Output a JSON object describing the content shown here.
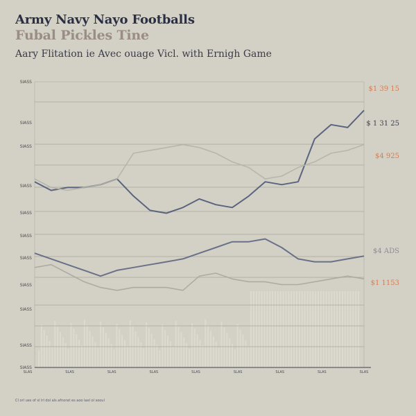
{
  "header": {
    "title_line1": "Army Navy Nayo Footballs",
    "title_line2": "Fubal Pickles Tine",
    "subtitle": "Aary Flitation  ie Avec ouage Vicl.   with Ernigh Game"
  },
  "footnote": "Cl  orl ues of sl lrl dol als afnorat es aoo lael ol sooul",
  "chart_data": {
    "type": "line",
    "title": "Army Navy Nayo Footballs",
    "subtitle": "Aary Flitation  ie Avec ouage Vicl.   with Ernigh Game",
    "xlabel": "",
    "ylabel": "",
    "x": [
      0,
      1,
      2,
      3,
      4,
      5,
      6,
      7,
      8,
      9,
      10,
      11,
      12,
      13,
      14,
      15,
      16,
      17,
      18,
      19,
      20
    ],
    "ylim": [
      0,
      100
    ],
    "grid": true,
    "x_tick_labels": [
      "SLAS",
      "SLAS",
      "SLAS",
      "SLAS",
      "SLAS",
      "SLAS",
      "SLAS",
      "SLAS",
      "SLAS"
    ],
    "y_tick_labels": [
      "SIASS",
      "SIASS",
      "SIASS",
      "SIASS",
      "SIASS",
      "SIASS",
      "SIASS",
      "SIASS",
      "SIASS",
      "SIASS",
      "SIASS"
    ],
    "series": [
      {
        "values": [
          65,
          62,
          63,
          63,
          64,
          66,
          60,
          55,
          54,
          56,
          59,
          57,
          56,
          60,
          65,
          64,
          65,
          80,
          85,
          84,
          90
        ],
        "color": "#4e5877"
      },
      {
        "values": [
          66,
          63,
          62,
          63,
          64,
          66,
          75,
          76,
          77,
          78,
          77,
          75,
          72,
          70,
          66,
          67,
          70,
          72,
          75,
          76,
          78
        ],
        "color": "#b4b2a8"
      },
      {
        "values": [
          40,
          38,
          36,
          34,
          32,
          34,
          35,
          36,
          37,
          38,
          40,
          42,
          44,
          44,
          45,
          42,
          38,
          37,
          37,
          38,
          39
        ],
        "color": "#5d6581"
      },
      {
        "values": [
          35,
          36,
          33,
          30,
          28,
          27,
          28,
          28,
          28,
          27,
          32,
          33,
          31,
          30,
          30,
          29,
          29,
          30,
          31,
          32,
          31
        ],
        "color": "#a9a79e"
      }
    ],
    "right_labels": [
      {
        "text": "$1 39 15",
        "color": "#d97a4e"
      },
      {
        "text": "$ 1 31 25",
        "color": "#3e3e4a"
      },
      {
        "text": "$4 925",
        "color": "#d97a4e"
      },
      {
        "text": "$4 ADS",
        "color": "#8a8a90"
      },
      {
        "text": "$1 1153",
        "color": "#d97a4e"
      }
    ]
  }
}
